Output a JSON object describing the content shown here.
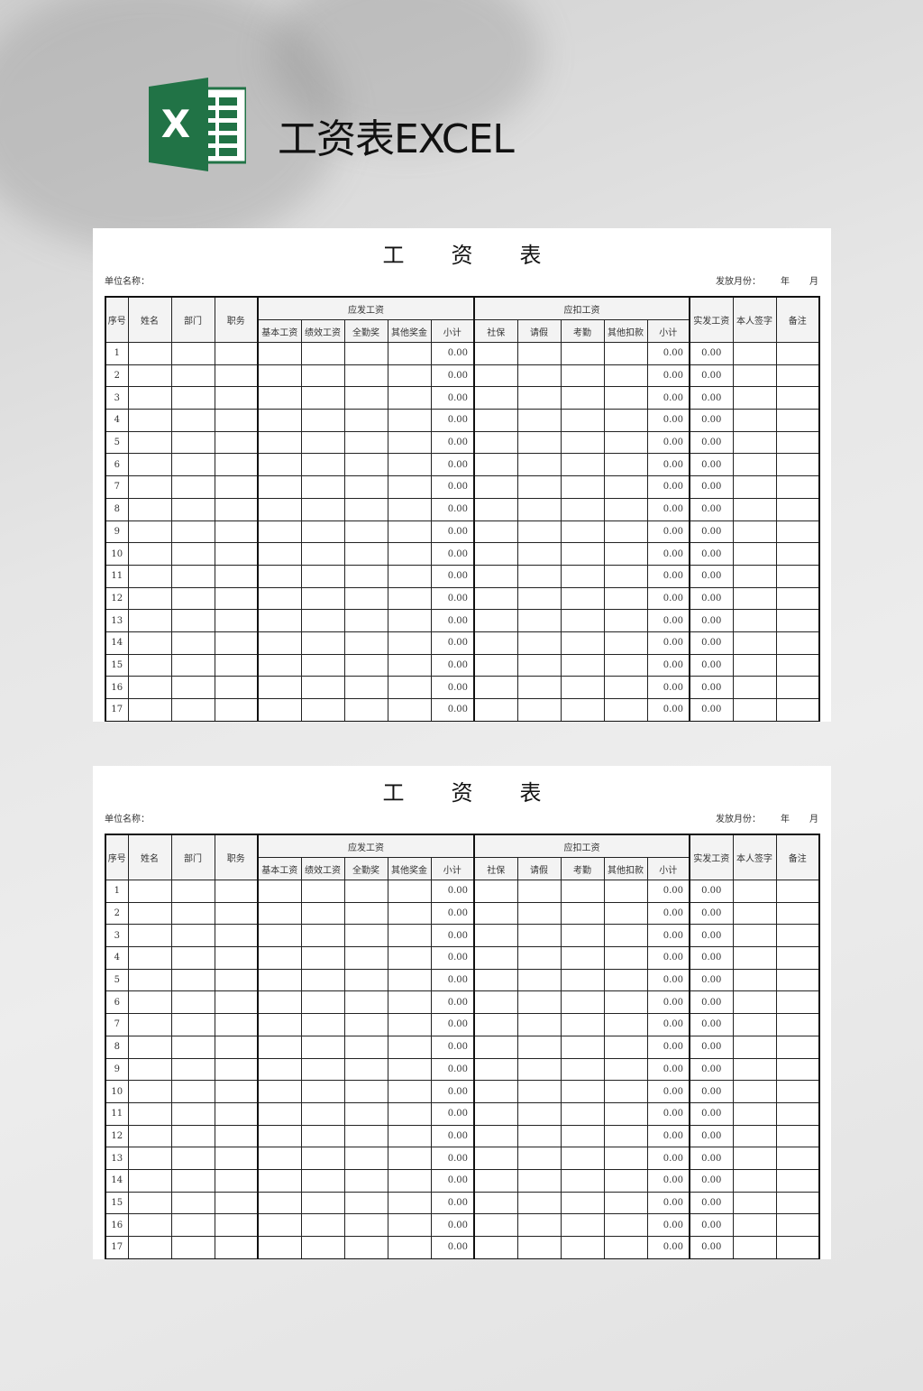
{
  "heading": "工资表EXCEL",
  "logo": {
    "letter": "X",
    "color": "#217346"
  },
  "sheets": [
    {
      "title": [
        "工",
        "资",
        "表"
      ],
      "unit_label": "单位名称：",
      "month_label": "发放月份：",
      "year": "年",
      "month": "月",
      "headers": {
        "seq": "序号",
        "name": "姓名",
        "dept": "部门",
        "position": "职务",
        "payable": "应发工资",
        "payable_cols": [
          "基本工资",
          "绩效工资",
          "全勤奖",
          "其他奖金",
          "小计"
        ],
        "deduct": "应扣工资",
        "deduct_cols": [
          "社保",
          "请假",
          "考勤",
          "其他扣款",
          "小计"
        ],
        "net": "实发工资",
        "sign": "本人签字",
        "remark": "备注"
      },
      "rows": [
        [
          "1",
          "0.00",
          "0.00",
          "0.00"
        ],
        [
          "2",
          "0.00",
          "0.00",
          "0.00"
        ],
        [
          "3",
          "0.00",
          "0.00",
          "0.00"
        ],
        [
          "4",
          "0.00",
          "0.00",
          "0.00"
        ],
        [
          "5",
          "0.00",
          "0.00",
          "0.00"
        ],
        [
          "6",
          "0.00",
          "0.00",
          "0.00"
        ],
        [
          "7",
          "0.00",
          "0.00",
          "0.00"
        ],
        [
          "8",
          "0.00",
          "0.00",
          "0.00"
        ],
        [
          "9",
          "0.00",
          "0.00",
          "0.00"
        ],
        [
          "10",
          "0.00",
          "0.00",
          "0.00"
        ],
        [
          "11",
          "0.00",
          "0.00",
          "0.00"
        ],
        [
          "12",
          "0.00",
          "0.00",
          "0.00"
        ],
        [
          "13",
          "0.00",
          "0.00",
          "0.00"
        ],
        [
          "14",
          "0.00",
          "0.00",
          "0.00"
        ],
        [
          "15",
          "0.00",
          "0.00",
          "0.00"
        ],
        [
          "16",
          "0.00",
          "0.00",
          "0.00"
        ],
        [
          "17",
          "0.00",
          "0.00",
          "0.00"
        ]
      ]
    },
    {
      "title": [
        "工",
        "资",
        "表"
      ],
      "unit_label": "单位名称：",
      "month_label": "发放月份：",
      "year": "年",
      "month": "月",
      "headers": {
        "seq": "序号",
        "name": "姓名",
        "dept": "部门",
        "position": "职务",
        "payable": "应发工资",
        "payable_cols": [
          "基本工资",
          "绩效工资",
          "全勤奖",
          "其他奖金",
          "小计"
        ],
        "deduct": "应扣工资",
        "deduct_cols": [
          "社保",
          "请假",
          "考勤",
          "其他扣款",
          "小计"
        ],
        "net": "实发工资",
        "sign": "本人签字",
        "remark": "备注"
      },
      "rows": [
        [
          "1",
          "0.00",
          "0.00",
          "0.00"
        ],
        [
          "2",
          "0.00",
          "0.00",
          "0.00"
        ],
        [
          "3",
          "0.00",
          "0.00",
          "0.00"
        ],
        [
          "4",
          "0.00",
          "0.00",
          "0.00"
        ],
        [
          "5",
          "0.00",
          "0.00",
          "0.00"
        ],
        [
          "6",
          "0.00",
          "0.00",
          "0.00"
        ],
        [
          "7",
          "0.00",
          "0.00",
          "0.00"
        ],
        [
          "8",
          "0.00",
          "0.00",
          "0.00"
        ],
        [
          "9",
          "0.00",
          "0.00",
          "0.00"
        ],
        [
          "10",
          "0.00",
          "0.00",
          "0.00"
        ],
        [
          "11",
          "0.00",
          "0.00",
          "0.00"
        ],
        [
          "12",
          "0.00",
          "0.00",
          "0.00"
        ],
        [
          "13",
          "0.00",
          "0.00",
          "0.00"
        ],
        [
          "14",
          "0.00",
          "0.00",
          "0.00"
        ],
        [
          "15",
          "0.00",
          "0.00",
          "0.00"
        ],
        [
          "16",
          "0.00",
          "0.00",
          "0.00"
        ],
        [
          "17",
          "0.00",
          "0.00",
          "0.00"
        ]
      ]
    }
  ]
}
